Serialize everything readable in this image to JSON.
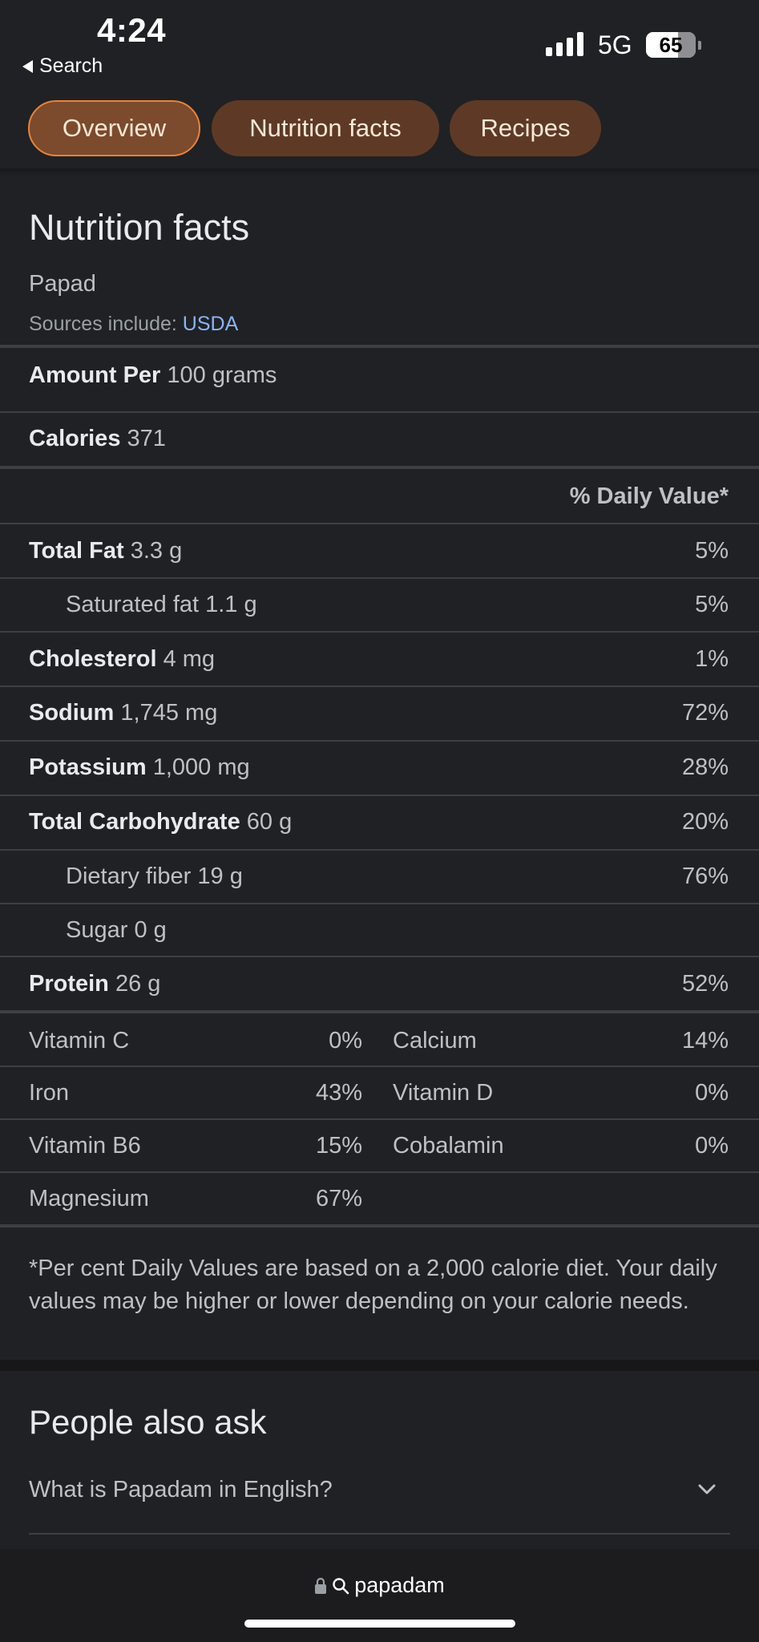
{
  "status_bar": {
    "time": "4:24",
    "back_label": "Search",
    "network": "5G",
    "battery": "65",
    "battery_level": 0.65
  },
  "chips": [
    {
      "label": "Overview",
      "active": true
    },
    {
      "label": "Nutrition facts",
      "active": false
    },
    {
      "label": "Recipes",
      "active": false
    }
  ],
  "nutrition": {
    "title": "Nutrition facts",
    "food": "Papad",
    "sources_prefix": "Sources include:",
    "sources_link": "USDA",
    "amount_label": "Amount Per",
    "amount_value": "100 grams",
    "calories_label": "Calories",
    "calories_value": "371",
    "daily_value_header": "% Daily Value*",
    "rows": [
      {
        "label": "Total Fat",
        "value": "3.3 g",
        "dv": "5%"
      },
      {
        "label": "Saturated fat",
        "value": "1.1 g",
        "dv": "5%"
      },
      {
        "label": "Cholesterol",
        "value": "4 mg",
        "dv": "1%"
      },
      {
        "label": "Sodium",
        "value": "1,745 mg",
        "dv": "72%"
      },
      {
        "label": "Potassium",
        "value": "1,000 mg",
        "dv": "28%"
      },
      {
        "label": "Total Carbohydrate",
        "value": "60 g",
        "dv": "20%"
      },
      {
        "label": "Dietary fiber",
        "value": "19 g",
        "dv": "76%"
      },
      {
        "label": "Sugar",
        "value": "0 g",
        "dv": ""
      },
      {
        "label": "Protein",
        "value": "26 g",
        "dv": "52%"
      }
    ],
    "vitamins": [
      {
        "name": "Vitamin C",
        "value": "0%"
      },
      {
        "name": "Calcium",
        "value": "14%"
      },
      {
        "name": "Iron",
        "value": "43%"
      },
      {
        "name": "Vitamin D",
        "value": "0%"
      },
      {
        "name": "Vitamin B6",
        "value": "15%"
      },
      {
        "name": "Cobalamin",
        "value": "0%"
      },
      {
        "name": "Magnesium",
        "value": "67%"
      }
    ],
    "footnote": "*Per cent Daily Values are based on a 2,000 calorie diet. Your daily values may be higher or lower depending on your calorie needs."
  },
  "people_also_ask": {
    "title": "People also ask",
    "questions": [
      "What is Papadam in English?"
    ]
  },
  "address_bar": {
    "url": "papadam"
  }
}
